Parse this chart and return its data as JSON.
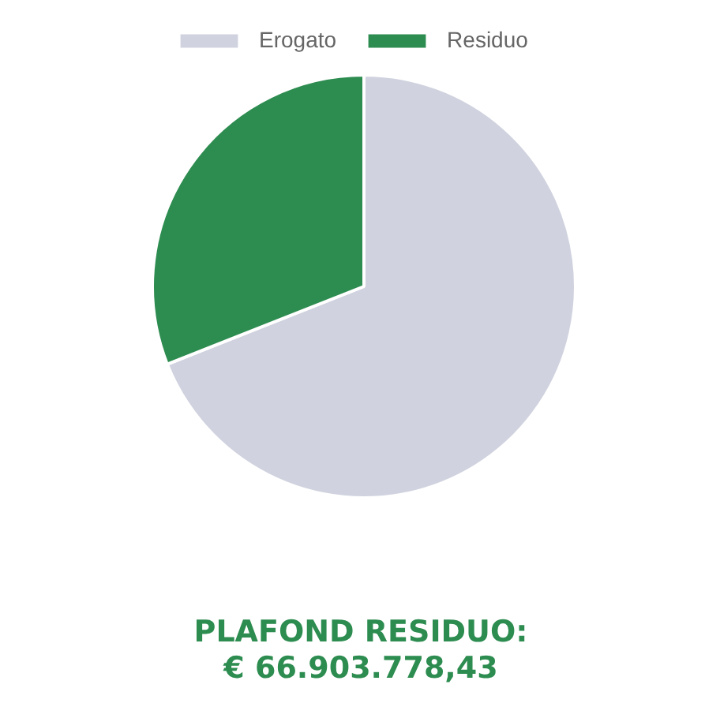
{
  "chart_data": {
    "type": "pie",
    "categories": [
      "Erogato",
      "Residuo"
    ],
    "values": [
      69,
      31
    ],
    "colors": [
      "#d0d3df",
      "#2d8c50"
    ],
    "legend": "top",
    "annotations": [
      "PLAFOND RESIDUO:",
      "€ 66.903.778,43"
    ]
  }
}
